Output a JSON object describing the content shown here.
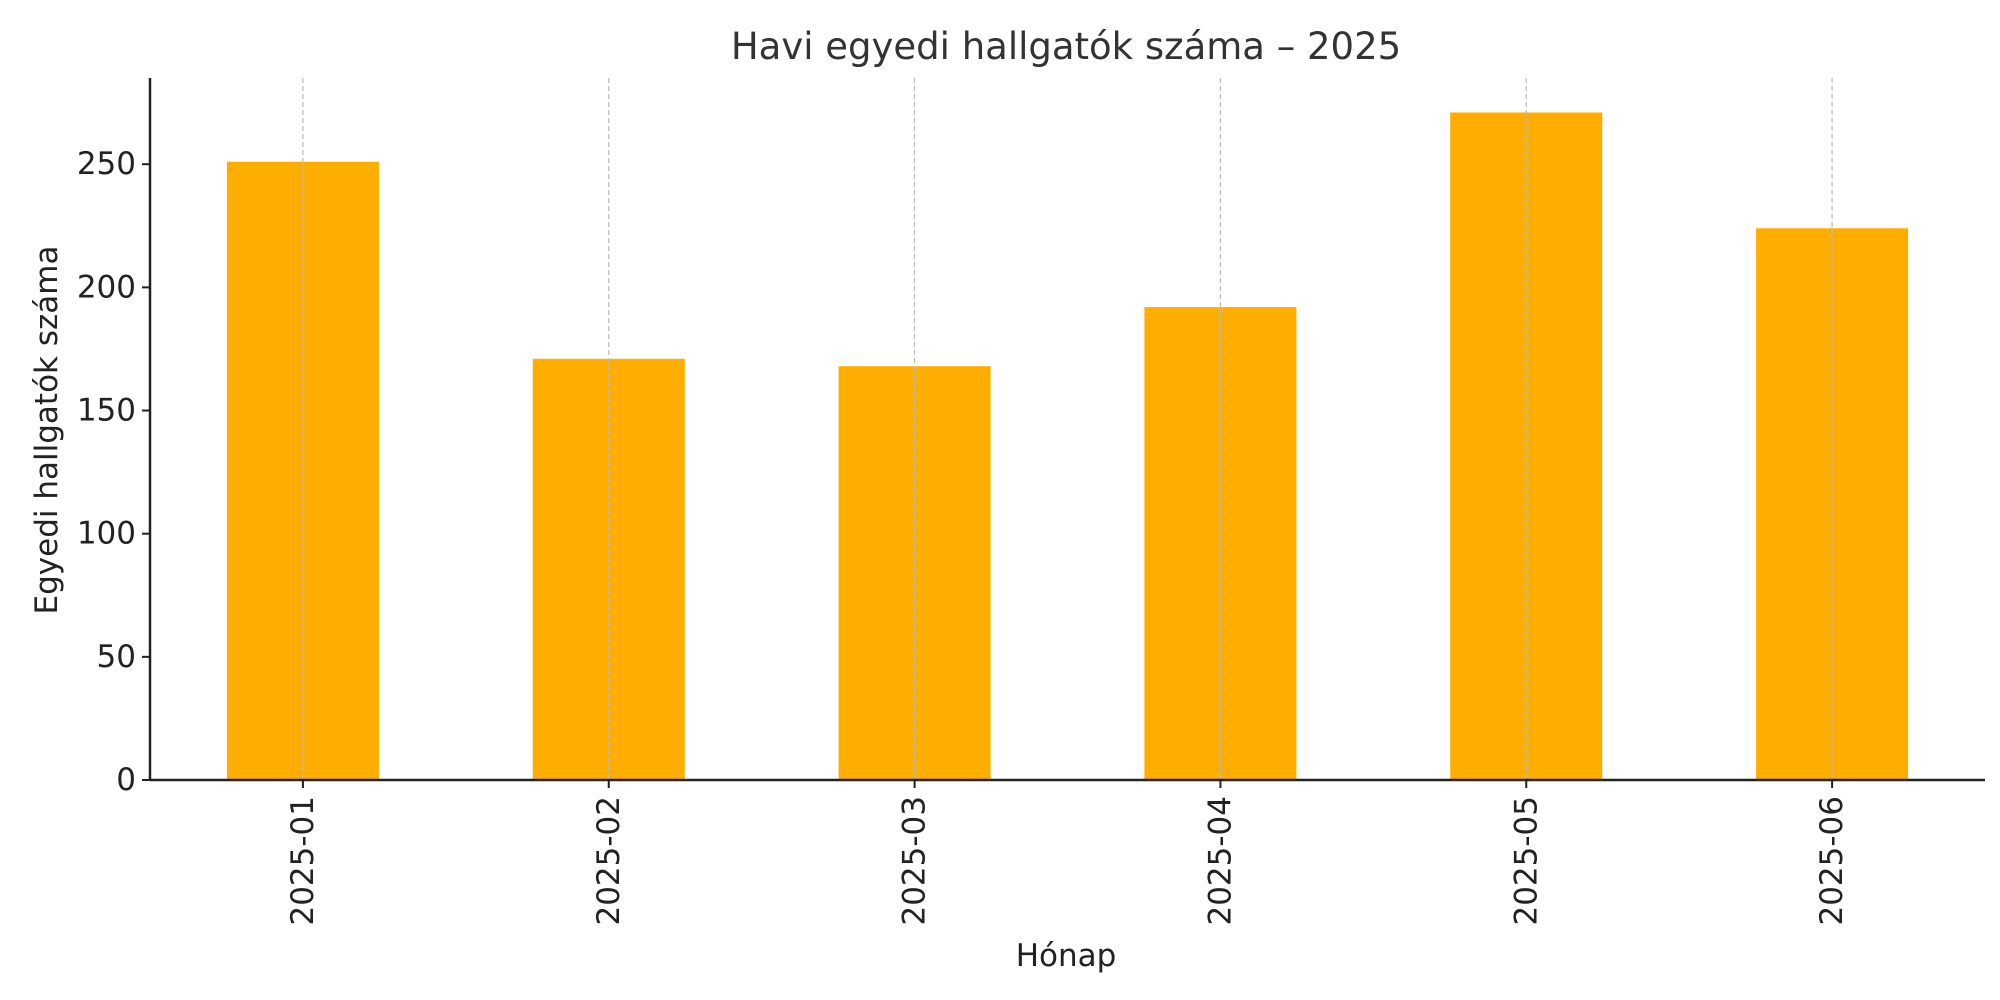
{
  "chart_data": {
    "type": "bar",
    "title": "Havi egyedi hallgatók száma – 2025",
    "xlabel": "Hónap",
    "ylabel": "Egyedi hallgatók száma",
    "categories": [
      "2025-01",
      "2025-02",
      "2025-03",
      "2025-04",
      "2025-05",
      "2025-06"
    ],
    "values": [
      251,
      171,
      168,
      192,
      271,
      224
    ],
    "ylim": [
      0,
      285
    ],
    "yticks": [
      0,
      50,
      100,
      150,
      200,
      250
    ],
    "grid": "x-dashed",
    "bar_color": "#ffae00",
    "grid_color": "#bbbbbb",
    "axis_color": "#222222"
  }
}
